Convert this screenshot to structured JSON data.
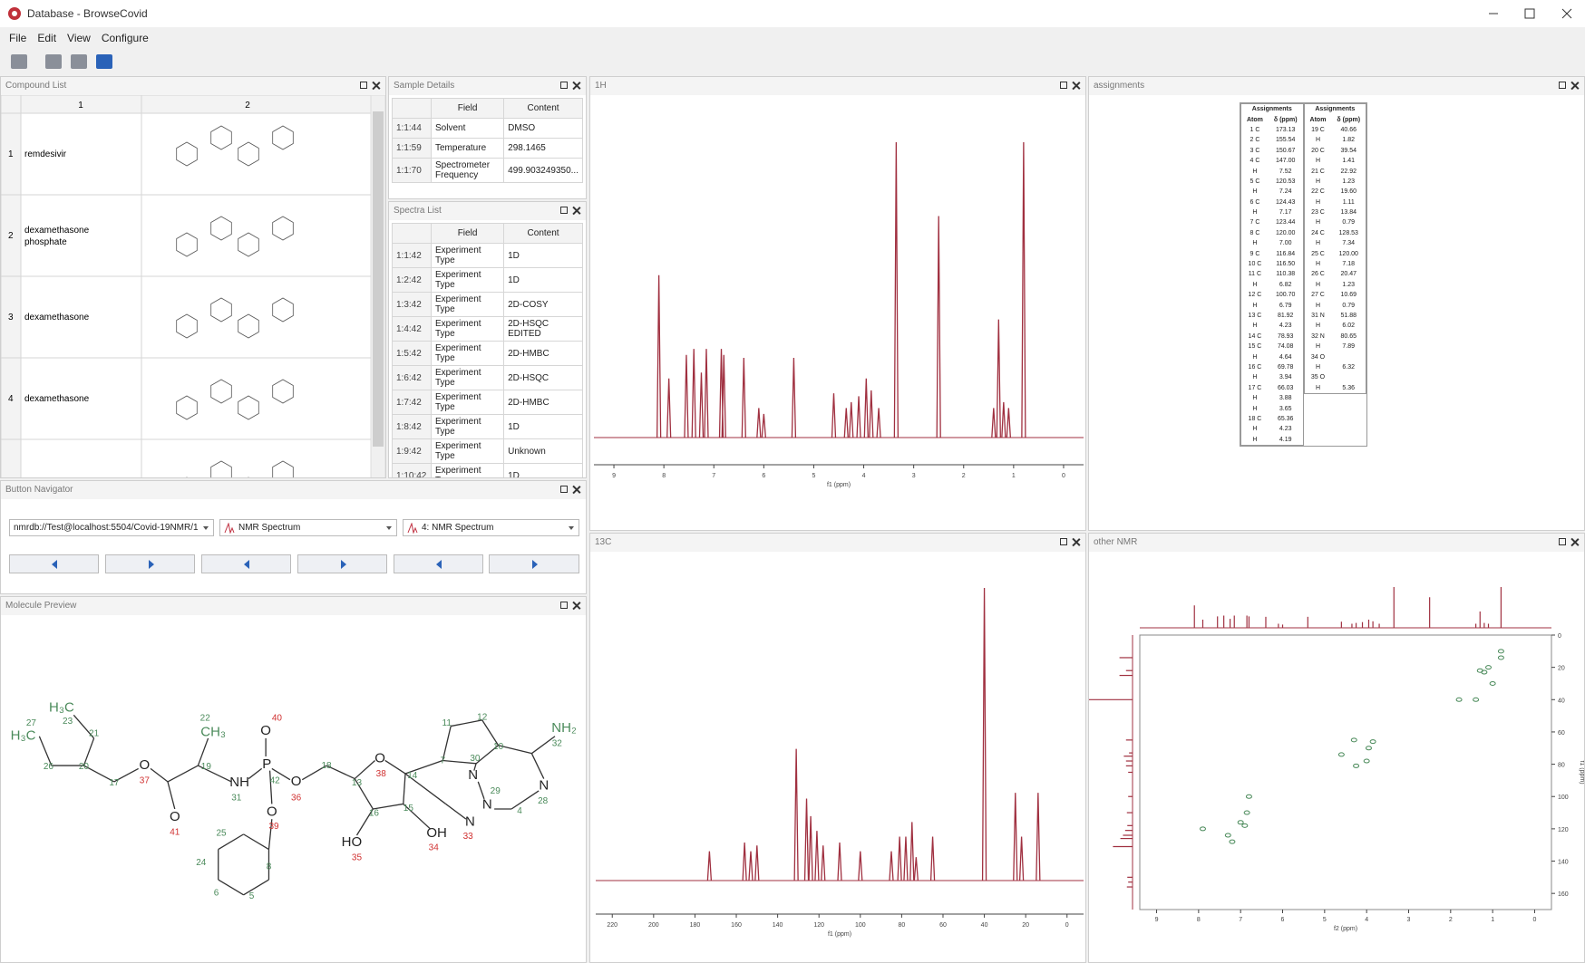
{
  "window": {
    "title": "Database - BrowseCovid",
    "menu": [
      "File",
      "Edit",
      "View",
      "Configure"
    ]
  },
  "panels": {
    "compound_list": "Compound List",
    "sample_details": "Sample Details",
    "spectra_list": "Spectra List",
    "button_navigator": "Button Navigator",
    "molecule_preview": "Molecule Preview",
    "h1": "1H",
    "assignments": "assignments",
    "c13": "13C",
    "other": "other NMR"
  },
  "compound_list": {
    "columns": [
      "1",
      "2"
    ],
    "rows": [
      [
        "1",
        "remdesivir"
      ],
      [
        "2",
        "dexamethasone phosphate"
      ],
      [
        "3",
        "dexamethasone"
      ],
      [
        "4",
        "dexamethasone"
      ]
    ]
  },
  "sample_details": {
    "columns": [
      "Field",
      "Content"
    ],
    "rows": [
      [
        "1:1:44",
        "Solvent",
        "DMSO"
      ],
      [
        "1:1:59",
        "Temperature",
        "298.1465"
      ],
      [
        "1:1:70",
        "Spectrometer Frequency",
        "499.903249350..."
      ]
    ]
  },
  "spectra_list": {
    "columns": [
      "Field",
      "Content"
    ],
    "rows": [
      [
        "1:1:42",
        "Experiment Type",
        "1D"
      ],
      [
        "1:2:42",
        "Experiment Type",
        "1D"
      ],
      [
        "1:3:42",
        "Experiment Type",
        "2D-COSY"
      ],
      [
        "1:4:42",
        "Experiment Type",
        "2D-HSQC EDITED"
      ],
      [
        "1:5:42",
        "Experiment Type",
        "2D-HMBC"
      ],
      [
        "1:6:42",
        "Experiment Type",
        "2D-HSQC"
      ],
      [
        "1:7:42",
        "Experiment Type",
        "2D-HMBC"
      ],
      [
        "1:8:42",
        "Experiment Type",
        "1D"
      ],
      [
        "1:9:42",
        "Experiment Type",
        "Unknown"
      ],
      [
        "1:10:42",
        "Experiment Type",
        "1D"
      ]
    ]
  },
  "navigator": {
    "selects": [
      "nmrdb://Test@localhost:5504/Covid-19NMR/1",
      "NMR Spectrum",
      "4: NMR Spectrum"
    ]
  },
  "assignments": {
    "tables": [
      {
        "title": "Assignments",
        "columns": [
          "Atom",
          "δ (ppm)"
        ],
        "rows": [
          [
            "1 C",
            "173.13"
          ],
          [
            "2 C",
            "155.54"
          ],
          [
            "3 C",
            "150.67"
          ],
          [
            "4 C",
            "147.00"
          ],
          [
            "H",
            "7.52"
          ],
          [
            "5 C",
            "120.53"
          ],
          [
            "H",
            "7.24"
          ],
          [
            "6 C",
            "124.43"
          ],
          [
            "H",
            "7.17"
          ],
          [
            "7 C",
            "123.44"
          ],
          [
            "8 C",
            "120.00"
          ],
          [
            "H",
            "7.00"
          ],
          [
            "9 C",
            "116.84"
          ],
          [
            "10 C",
            "116.50"
          ],
          [
            "11 C",
            "110.38"
          ],
          [
            "H",
            "6.82"
          ],
          [
            "12 C",
            "100.70"
          ],
          [
            "H",
            "6.79"
          ],
          [
            "13 C",
            "81.92"
          ],
          [
            "H",
            "4.23"
          ],
          [
            "14 C",
            "78.93"
          ],
          [
            "15 C",
            "74.08"
          ],
          [
            "H",
            "4.64"
          ],
          [
            "16 C",
            "69.78"
          ],
          [
            "H",
            "3.94"
          ],
          [
            "17 C",
            "66.03"
          ],
          [
            "H",
            "3.88"
          ],
          [
            "H",
            "3.65"
          ],
          [
            "18 C",
            "65.36"
          ],
          [
            "H",
            "4.23"
          ],
          [
            "H",
            "4.19"
          ]
        ]
      },
      {
        "title": "Assignments",
        "columns": [
          "Atom",
          "δ (ppm)"
        ],
        "rows": [
          [
            "19 C",
            "40.66"
          ],
          [
            "H",
            "1.82"
          ],
          [
            "20 C",
            "39.54"
          ],
          [
            "H",
            "1.41"
          ],
          [
            "21 C",
            "22.92"
          ],
          [
            "H",
            "1.23"
          ],
          [
            "22 C",
            "19.60"
          ],
          [
            "H",
            "1.11"
          ],
          [
            "23 C",
            "13.84"
          ],
          [
            "H",
            "0.79"
          ],
          [
            "24 C",
            "128.53"
          ],
          [
            "H",
            "7.34"
          ],
          [
            "25 C",
            "120.00"
          ],
          [
            "H",
            "7.18"
          ],
          [
            "26 C",
            "20.47"
          ],
          [
            "H",
            "1.23"
          ],
          [
            "27 C",
            "10.69"
          ],
          [
            "H",
            "0.79"
          ],
          [
            "31 N",
            "51.88"
          ],
          [
            "H",
            "6.02"
          ],
          [
            "32 N",
            "80.65"
          ],
          [
            "H",
            "7.89"
          ],
          [
            "34 O"
          ],
          [
            "H",
            "6.32"
          ],
          [
            "35 O"
          ],
          [
            "H",
            "5.36"
          ]
        ]
      }
    ]
  },
  "molecule": {
    "labels": [
      "H₃C",
      "27",
      "H₃C",
      "23",
      "21",
      "26",
      "20",
      "17",
      "O",
      "37",
      "O",
      "41",
      "22",
      "CH₃",
      "19",
      "NH",
      "31",
      "P",
      "O",
      "40",
      "42",
      "O",
      "36",
      "O",
      "39",
      "18",
      "O",
      "38",
      "13",
      "14",
      "16",
      "15",
      "HO",
      "35",
      "OH",
      "34",
      "N",
      "33",
      "7",
      "11",
      "12",
      "10",
      "30",
      "N",
      "29",
      "N",
      "4",
      "N",
      "28",
      "NH₂",
      "32",
      "25",
      "24",
      "6",
      "5",
      "8"
    ]
  },
  "spectra": {
    "h1": {
      "xlabel": "f1 (ppm)",
      "xlim": [
        9.4,
        -0.4
      ],
      "xticks": [
        9,
        8,
        7,
        6,
        5,
        4,
        3,
        2,
        1,
        0
      ],
      "shifts": [
        8.1,
        7.9,
        7.55,
        7.4,
        7.25,
        7.15,
        6.85,
        6.8,
        6.4,
        6.1,
        6.0,
        5.4,
        4.6,
        4.35,
        4.25,
        4.1,
        3.95,
        3.85,
        3.7,
        3.35,
        2.5,
        1.4,
        1.3,
        1.2,
        1.1,
        0.8
      ],
      "heights": [
        0.55,
        0.2,
        0.28,
        0.3,
        0.22,
        0.3,
        0.3,
        0.28,
        0.27,
        0.1,
        0.08,
        0.27,
        0.15,
        0.1,
        0.12,
        0.14,
        0.2,
        0.16,
        0.1,
        1.0,
        0.75,
        0.1,
        0.4,
        0.12,
        0.1,
        1.0
      ]
    },
    "c13": {
      "xlabel": "f1 (ppm)",
      "xlim": [
        228,
        -8
      ],
      "xticks": [
        220,
        200,
        180,
        160,
        140,
        120,
        100,
        80,
        60,
        40,
        20,
        0
      ],
      "shifts": [
        173,
        156,
        153,
        150,
        131,
        126,
        124,
        121,
        118,
        110,
        100,
        85,
        81,
        78,
        75,
        73,
        65,
        40,
        25,
        22,
        14
      ],
      "heights": [
        0.1,
        0.13,
        0.1,
        0.12,
        0.45,
        0.28,
        0.22,
        0.17,
        0.12,
        0.13,
        0.1,
        0.1,
        0.15,
        0.15,
        0.2,
        0.08,
        0.15,
        1.0,
        0.3,
        0.15,
        0.3
      ]
    },
    "other": {
      "xlabel": "f2 (ppm)",
      "ylabel": "f1 (ppm)",
      "xlim": [
        9.4,
        -0.4
      ],
      "xticks": [
        9,
        8,
        7,
        6,
        5,
        4,
        3,
        2,
        1,
        0
      ],
      "ylim": [
        0,
        170
      ],
      "yticks": [
        0,
        20,
        40,
        60,
        80,
        100,
        120,
        140,
        160
      ],
      "x": [
        7.9,
        7.3,
        7.2,
        6.85,
        6.8,
        4.6,
        4.25,
        3.95,
        3.85,
        1.8,
        1.4,
        1.3,
        1.1,
        0.8,
        0.8,
        4.3,
        4.0,
        1.0,
        1.2,
        7.0,
        6.9
      ],
      "y": [
        120,
        124,
        128,
        110,
        100,
        74,
        81,
        70,
        66,
        40,
        40,
        22,
        20,
        14,
        10,
        65,
        78,
        30,
        23,
        116,
        118
      ]
    }
  }
}
